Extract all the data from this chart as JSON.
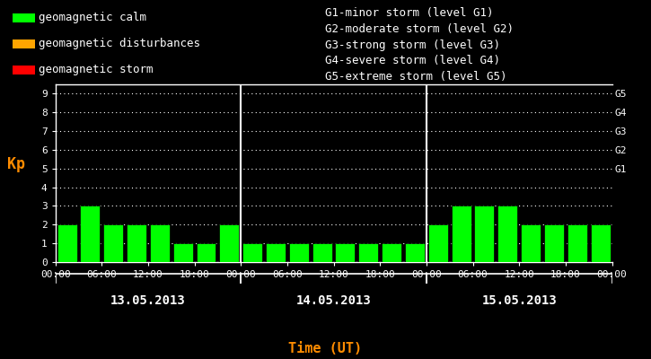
{
  "background_color": "#000000",
  "bar_color": "#00ff00",
  "bar_edge_color": "#000000",
  "day1_values": [
    2,
    3,
    2,
    2,
    2,
    1,
    1,
    2
  ],
  "day2_values": [
    1,
    1,
    1,
    1,
    1,
    1,
    1,
    1
  ],
  "day3_values": [
    2,
    3,
    3,
    3,
    2,
    2,
    2,
    2
  ],
  "day1_label": "13.05.2013",
  "day2_label": "14.05.2013",
  "day3_label": "15.05.2013",
  "ylabel": "Kp",
  "xlabel": "Time (UT)",
  "xlabel_color": "#ff8c00",
  "ylabel_color": "#ff8c00",
  "ylim": [
    0,
    9.5
  ],
  "yticks": [
    0,
    1,
    2,
    3,
    4,
    5,
    6,
    7,
    8,
    9
  ],
  "grid_color": "#ffffff",
  "tick_color": "#ffffff",
  "axis_color": "#ffffff",
  "text_color": "#ffffff",
  "time_labels": [
    "00:00",
    "06:00",
    "12:00",
    "18:00",
    "00:00"
  ],
  "g_labels": [
    "G5",
    "G4",
    "G3",
    "G2",
    "G1"
  ],
  "g_y_positions": [
    9,
    8,
    7,
    6,
    5
  ],
  "legend_items": [
    {
      "label": "geomagnetic calm",
      "color": "#00ff00"
    },
    {
      "label": "geomagnetic disturbances",
      "color": "#ffa500"
    },
    {
      "label": "geomagnetic storm",
      "color": "#ff0000"
    }
  ],
  "right_text_lines": [
    "G1-minor storm (level G1)",
    "G2-moderate storm (level G2)",
    "G3-strong storm (level G3)",
    "G4-severe storm (level G4)",
    "G5-extreme storm (level G5)"
  ],
  "font_family": "monospace",
  "font_size_legend": 9,
  "font_size_axis": 8,
  "font_size_ylabel": 12,
  "font_size_xlabel": 11,
  "font_size_day": 10,
  "font_size_gticks": 8
}
